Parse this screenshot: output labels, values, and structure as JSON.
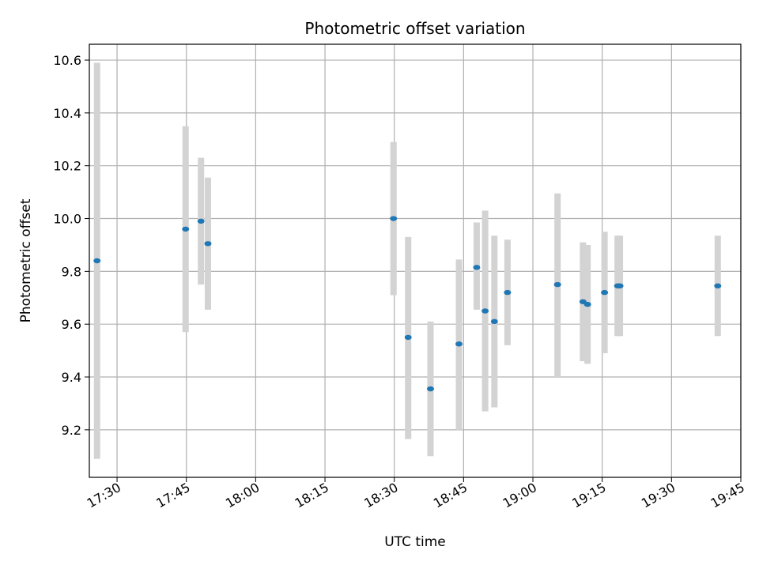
{
  "chart_data": {
    "type": "scatter",
    "title": "Photometric offset variation",
    "xlabel": "UTC time",
    "ylabel": "Photometric offset",
    "x_unit": "UTC time (HH:MM)",
    "xlim": [
      "17:24",
      "19:45"
    ],
    "ylim": [
      9.02,
      10.66
    ],
    "x_ticks": [
      "17:30",
      "17:45",
      "18:00",
      "18:15",
      "18:30",
      "18:45",
      "19:00",
      "19:15",
      "19:30",
      "19:45"
    ],
    "y_ticks": [
      9.2,
      9.4,
      9.6,
      9.8,
      10.0,
      10.2,
      10.4,
      10.6
    ],
    "grid": true,
    "marker_color": "#1f77b4",
    "errorbar_color": "#d3d3d3",
    "points": [
      {
        "x": "17:25:40",
        "y": 9.84,
        "ylow": 9.09,
        "yhigh": 10.59
      },
      {
        "x": "17:44:50",
        "y": 9.96,
        "ylow": 9.57,
        "yhigh": 10.35
      },
      {
        "x": "17:48:10",
        "y": 9.99,
        "ylow": 9.75,
        "yhigh": 10.23
      },
      {
        "x": "17:49:40",
        "y": 9.905,
        "ylow": 9.655,
        "yhigh": 10.155
      },
      {
        "x": "18:29:50",
        "y": 10.0,
        "ylow": 9.71,
        "yhigh": 10.29
      },
      {
        "x": "18:33:00",
        "y": 9.55,
        "ylow": 9.165,
        "yhigh": 9.93
      },
      {
        "x": "18:37:50",
        "y": 9.355,
        "ylow": 9.1,
        "yhigh": 9.61
      },
      {
        "x": "18:44:00",
        "y": 9.525,
        "ylow": 9.2,
        "yhigh": 9.845
      },
      {
        "x": "18:47:50",
        "y": 9.815,
        "ylow": 9.655,
        "yhigh": 9.985
      },
      {
        "x": "18:49:40",
        "y": 9.65,
        "ylow": 9.27,
        "yhigh": 10.03
      },
      {
        "x": "18:51:40",
        "y": 9.61,
        "ylow": 9.285,
        "yhigh": 9.935
      },
      {
        "x": "18:54:30",
        "y": 9.72,
        "ylow": 9.52,
        "yhigh": 9.92
      },
      {
        "x": "19:05:20",
        "y": 9.75,
        "ylow": 9.4,
        "yhigh": 10.095
      },
      {
        "x": "19:10:50",
        "y": 9.685,
        "ylow": 9.46,
        "yhigh": 9.91
      },
      {
        "x": "19:11:50",
        "y": 9.675,
        "ylow": 9.45,
        "yhigh": 9.9
      },
      {
        "x": "19:15:30",
        "y": 9.72,
        "ylow": 9.49,
        "yhigh": 9.95
      },
      {
        "x": "19:18:20",
        "y": 9.745,
        "ylow": 9.555,
        "yhigh": 9.935
      },
      {
        "x": "19:18:50",
        "y": 9.745,
        "ylow": 9.555,
        "yhigh": 9.935
      },
      {
        "x": "19:40:00",
        "y": 9.745,
        "ylow": 9.555,
        "yhigh": 9.935
      }
    ]
  }
}
